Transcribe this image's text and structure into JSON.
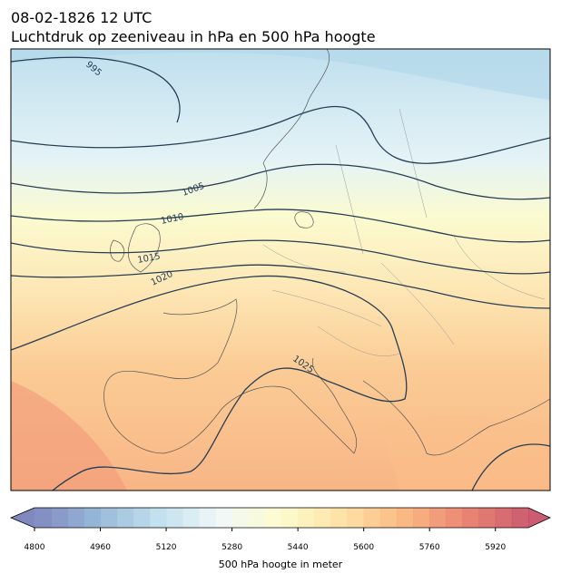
{
  "header": {
    "title": "08-02-1826 12 UTC",
    "subtitle": "Luchtdruk op zeeniveau in hPa en 500 hPa hoogte"
  },
  "map": {
    "contour_labels": [
      "995",
      "1005",
      "1010",
      "1015",
      "1020",
      "1025"
    ]
  },
  "colorbar": {
    "lim": [
      4800,
      6000
    ],
    "step": 40,
    "ticks": [
      4800,
      4960,
      5120,
      5280,
      5440,
      5600,
      5760,
      5920
    ],
    "label": "500 hPa hoogte in meter",
    "cmap": [
      "#6a73b5",
      "#85acd2",
      "#b7dbea",
      "#eef7f6",
      "#fdfbc6",
      "#fedc96",
      "#f9ad6f",
      "#e6705a",
      "#c24058"
    ]
  }
}
